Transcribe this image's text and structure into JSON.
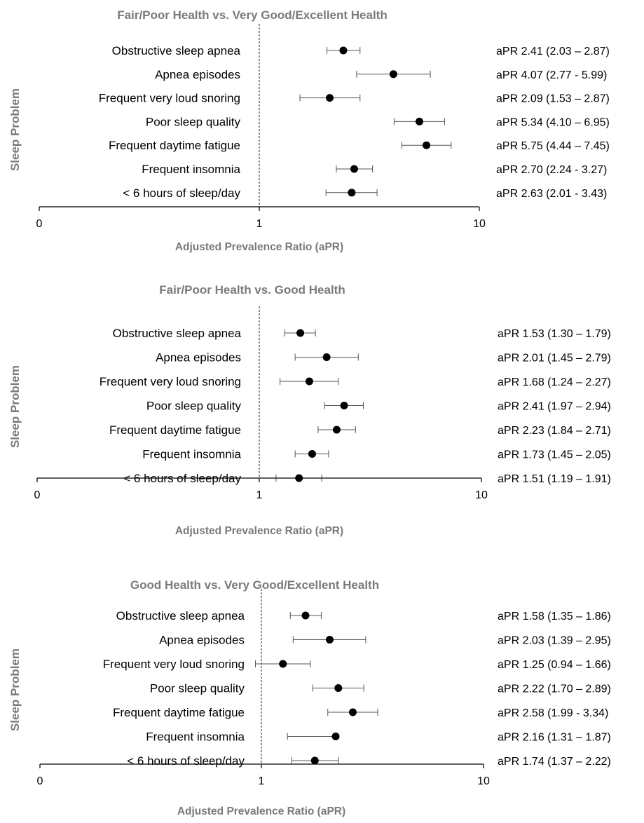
{
  "chart_data": [
    {
      "type": "forest",
      "title": "Fair/Poor Health vs. Very Good/Excellent Health",
      "xlabel": "Adjusted Prevalence Ratio (aPR)",
      "ylabel": "Sleep Problem",
      "x_scale": "log",
      "reference_line": 1,
      "xticks": [
        "0",
        "1",
        "10"
      ],
      "categories": [
        "Obstructive sleep apnea",
        "Apnea episodes",
        "Frequent very loud snoring",
        "Poor sleep quality",
        "Frequent daytime fatigue",
        "Frequent insomnia",
        "< 6 hours of sleep/day"
      ],
      "points": [
        {
          "est": 2.41,
          "low": 2.03,
          "high": 2.87,
          "label": "aPR  2.41 (2.03 – 2.87)"
        },
        {
          "est": 4.07,
          "low": 2.77,
          "high": 5.99,
          "label": "aPR  4.07 (2.77 - 5.99)"
        },
        {
          "est": 2.09,
          "low": 1.53,
          "high": 2.87,
          "label": "aPR  2.09 (1.53 – 2.87)"
        },
        {
          "est": 5.34,
          "low": 4.1,
          "high": 6.95,
          "label": "aPR  5.34 (4.10 – 6.95)"
        },
        {
          "est": 5.75,
          "low": 4.44,
          "high": 7.45,
          "label": "aPR  5.75 (4.44 – 7.45)"
        },
        {
          "est": 2.7,
          "low": 2.24,
          "high": 3.27,
          "label": "aPR  2.70 (2.24 - 3.27)"
        },
        {
          "est": 2.63,
          "low": 2.01,
          "high": 3.43,
          "label": "aPR  2.63 (2.01 - 3.43)"
        }
      ]
    },
    {
      "type": "forest",
      "title": "Fair/Poor Health vs. Good Health",
      "xlabel": "Adjusted Prevalence Ratio (aPR)",
      "ylabel": "Sleep Problem",
      "x_scale": "log",
      "reference_line": 1,
      "xticks": [
        "0",
        "1",
        "10"
      ],
      "categories": [
        "Obstructive sleep apnea",
        "Apnea episodes",
        "Frequent very loud snoring",
        "Poor sleep quality",
        "Frequent daytime fatigue",
        "Frequent insomnia",
        "< 6 hours of sleep/day"
      ],
      "points": [
        {
          "est": 1.53,
          "low": 1.3,
          "high": 1.79,
          "label": "aPR  1.53 (1.30 – 1.79)"
        },
        {
          "est": 2.01,
          "low": 1.45,
          "high": 2.79,
          "label": "aPR  2.01 (1.45 – 2.79)"
        },
        {
          "est": 1.68,
          "low": 1.24,
          "high": 2.27,
          "label": "aPR  1.68 (1.24 – 2.27)"
        },
        {
          "est": 2.41,
          "low": 1.97,
          "high": 2.94,
          "label": "aPR  2.41 (1.97 – 2.94)"
        },
        {
          "est": 2.23,
          "low": 1.84,
          "high": 2.71,
          "label": "aPR  2.23 (1.84 – 2.71)"
        },
        {
          "est": 1.73,
          "low": 1.45,
          "high": 2.05,
          "label": "aPR  1.73 (1.45 – 2.05)"
        },
        {
          "est": 1.51,
          "low": 1.19,
          "high": 1.91,
          "label": "aPR  1.51 (1.19 – 1.91)"
        }
      ]
    },
    {
      "type": "forest",
      "title": "Good Health vs. Very Good/Excellent Health",
      "xlabel": "Adjusted Prevalence Ratio (aPR)",
      "ylabel": "Sleep Problem",
      "x_scale": "log",
      "reference_line": 1,
      "xticks": [
        "0",
        "1",
        "10"
      ],
      "categories": [
        "Obstructive sleep apnea",
        "Apnea episodes",
        "Frequent very loud snoring",
        "Poor sleep quality",
        "Frequent daytime fatigue",
        "Frequent insomnia",
        "< 6 hours of sleep/day"
      ],
      "points": [
        {
          "est": 1.58,
          "low": 1.35,
          "high": 1.86,
          "label": "aPR  1.58 (1.35 – 1.86)"
        },
        {
          "est": 2.03,
          "low": 1.39,
          "high": 2.95,
          "label": "aPR  2.03 (1.39 – 2.95)"
        },
        {
          "est": 1.25,
          "low": 0.94,
          "high": 1.66,
          "label": "aPR  1.25 (0.94 – 1.66)"
        },
        {
          "est": 2.22,
          "low": 1.7,
          "high": 2.89,
          "label": "aPR  2.22 (1.70 – 2.89)"
        },
        {
          "est": 2.58,
          "low": 1.99,
          "high": 3.34,
          "label": "aPR  2.58 (1.99 - 3.34)"
        },
        {
          "est": 2.16,
          "low": 1.31,
          "high": 1.87,
          "label": "aPR  2.16 (1.31 – 1.87)"
        },
        {
          "est": 1.74,
          "low": 1.37,
          "high": 2.22,
          "label": "aPR  1.74 (1.37 – 2.22)"
        }
      ]
    }
  ]
}
